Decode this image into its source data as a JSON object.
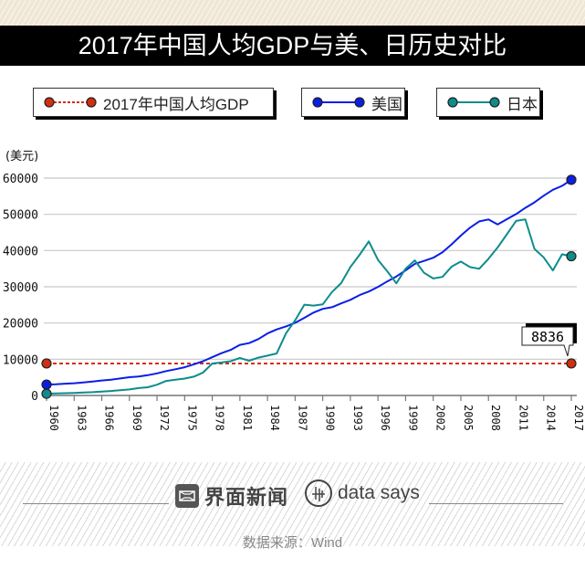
{
  "title": "2017年中国人均GDP与美、日历史对比",
  "legend": [
    {
      "label": "2017年中国人均GDP",
      "color": "#d03010",
      "style": "dotted"
    },
    {
      "label": "美国",
      "color": "#0a1ee6",
      "style": "solid"
    },
    {
      "label": "日本",
      "color": "#0e8c8c",
      "style": "solid"
    }
  ],
  "footer": {
    "brand": "界面新闻",
    "brand2": "data says",
    "source": "数据来源：Wind"
  },
  "chart_data": {
    "type": "line",
    "title": "2017年中国人均GDP与美、日历史对比",
    "ylabel": "(美元)",
    "xlabel": "",
    "ylim": [
      0,
      60000
    ],
    "yticks": [
      0,
      10000,
      20000,
      30000,
      40000,
      50000,
      60000
    ],
    "xlim": [
      1960,
      2017
    ],
    "xticks": [
      1960,
      1963,
      1966,
      1969,
      1972,
      1975,
      1978,
      1981,
      1984,
      1987,
      1990,
      1993,
      1996,
      1999,
      2002,
      2005,
      2008,
      2011,
      2014,
      2017
    ],
    "grid": true,
    "legend_position": "top",
    "x": [
      1960,
      1961,
      1962,
      1963,
      1964,
      1965,
      1966,
      1967,
      1968,
      1969,
      1970,
      1971,
      1972,
      1973,
      1974,
      1975,
      1976,
      1977,
      1978,
      1979,
      1980,
      1981,
      1982,
      1983,
      1984,
      1985,
      1986,
      1987,
      1988,
      1989,
      1990,
      1991,
      1992,
      1993,
      1994,
      1995,
      1996,
      1997,
      1998,
      1999,
      2000,
      2001,
      2002,
      2003,
      2004,
      2005,
      2006,
      2007,
      2008,
      2009,
      2010,
      2011,
      2012,
      2013,
      2014,
      2015,
      2016,
      2017
    ],
    "series": [
      {
        "name": "2017年中国人均GDP",
        "constant": 8836,
        "values": [
          8836,
          8836
        ]
      },
      {
        "name": "美国",
        "values": [
          3007,
          3067,
          3244,
          3375,
          3574,
          3828,
          4146,
          4336,
          4696,
          5032,
          5234,
          5609,
          6094,
          6726,
          7226,
          7801,
          8592,
          9453,
          10565,
          11674,
          12575,
          13976,
          14434,
          15544,
          17121,
          18237,
          19071,
          20039,
          21417,
          22857,
          23889,
          24342,
          25419,
          26387,
          27695,
          28691,
          29968,
          31459,
          32854,
          34515,
          36335,
          37133,
          38023,
          39496,
          41713,
          44115,
          46299,
          48050,
          48570,
          47195,
          48651,
          50066,
          51784,
          53291,
          55124,
          56763,
          57867,
          59532
        ],
        "note": "values estimated from plot"
      },
      {
        "name": "日本",
        "values": [
          479,
          564,
          634,
          718,
          835,
          919,
          1058,
          1228,
          1450,
          1669,
          2037,
          2272,
          2967,
          3997,
          4354,
          4659,
          5198,
          6335,
          8821,
          9105,
          9465,
          10361,
          9578,
          10425,
          10984,
          11585,
          17112,
          20745,
          25052,
          24813,
          25124,
          28541,
          31014,
          35452,
          38815,
          42522,
          37423,
          34304,
          30969,
          34997,
          37292,
          33847,
          32289,
          32719,
          35577,
          36969,
          35434,
          34954,
          37723,
          40853,
          44508,
          48168,
          48603,
          40454,
          38109,
          34524,
          38973,
          38430
        ],
        "note": "values estimated from plot"
      }
    ],
    "annotations": [
      {
        "x": 2017,
        "series": "2017年中国人均GDP",
        "text": "8836"
      }
    ]
  }
}
